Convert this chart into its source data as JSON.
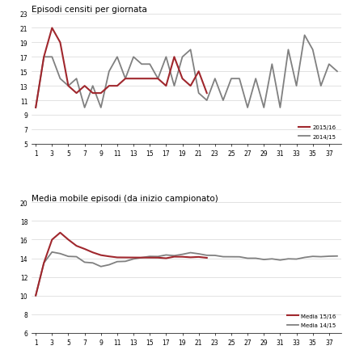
{
  "title1": "Episodi censiti per giornata",
  "title2": "Media mobile episodi (da inizio campionato)",
  "legend1_label1": "2015/16",
  "legend1_label2": "2014/15",
  "legend2_label1": "Media 15/16",
  "legend2_label2": "Media 14/15",
  "color_red": "#A0272D",
  "color_gray": "#808080",
  "x_ticks": [
    1,
    3,
    5,
    7,
    9,
    11,
    13,
    15,
    17,
    19,
    21,
    23,
    25,
    27,
    29,
    31,
    33,
    35,
    37
  ],
  "xlim": [
    0.5,
    38.5
  ],
  "ylim1": [
    5,
    23
  ],
  "yticks1": [
    5,
    7,
    9,
    11,
    13,
    15,
    17,
    19,
    21,
    23
  ],
  "ylim2": [
    6,
    20
  ],
  "yticks2": [
    6,
    8,
    10,
    12,
    14,
    16,
    18,
    20
  ],
  "series_15_16": [
    10,
    17,
    21,
    19,
    13,
    12,
    13,
    12,
    12,
    13,
    13,
    14,
    14,
    14,
    14,
    14,
    13,
    17,
    14,
    13,
    15,
    12
  ],
  "series_14_15": [
    10,
    17,
    17,
    14,
    13,
    14,
    10,
    13,
    10,
    15,
    17,
    14,
    17,
    16,
    16,
    14,
    17,
    13,
    17,
    18,
    12,
    11,
    14,
    11,
    14,
    14,
    10,
    14,
    10,
    16,
    10,
    18,
    13,
    20,
    18,
    13,
    16,
    15
  ],
  "figsize": [
    4.35,
    4.39
  ],
  "dpi": 100
}
